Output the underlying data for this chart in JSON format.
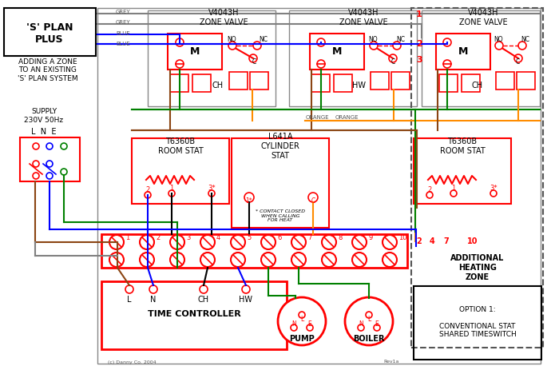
{
  "title": "'S' PLAN PLUS",
  "subtitle": "ADDING A ZONE\nTO AN EXISTING\n'S' PLAN SYSTEM",
  "bg_color": "#ffffff",
  "wire_colors": {
    "grey": "#808080",
    "blue": "#0000ff",
    "brown": "#8B4513",
    "green": "#008000",
    "orange": "#FF8C00",
    "black": "#000000",
    "red": "#ff0000"
  },
  "supply_text": "SUPPLY\n230V 50Hz",
  "lne_text": "L  N  E",
  "zone_valve_label": "V4043H\nZONE VALVE",
  "room_stat_label": "T6360B\nROOM STAT",
  "cyl_stat_label": "L641A\nCYLINDER\nSTAT",
  "time_controller_label": "TIME CONTROLLER",
  "pump_label": "PUMP",
  "boiler_label": "BOILER",
  "additional_zone_label": "ADDITIONAL\nHEATING\nZONE",
  "option_label": "OPTION 1:\n\nCONVENTIONAL STAT\nSHARED TIMESWITCH",
  "ch_label": "CH",
  "hw_label": "HW",
  "terminal_numbers": [
    "1",
    "2",
    "3",
    "4",
    "5",
    "6",
    "7",
    "8",
    "9",
    "10"
  ],
  "terminal_labels_bottom": [
    "L",
    "N",
    "CH",
    "HW"
  ]
}
